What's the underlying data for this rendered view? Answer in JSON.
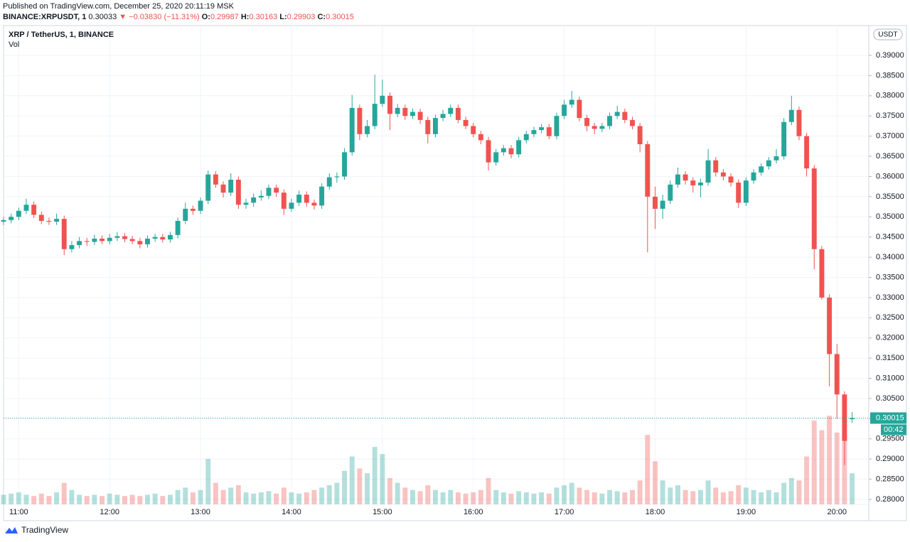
{
  "header": {
    "published": "Published on TradingView.com, December 25, 2020 20:11:19 MSK",
    "symbol": "BINANCE:XRPUSDT, 1",
    "price": "0.30033",
    "arrow": "▼",
    "change": "−0.03830 (−11.31%)",
    "o_label": "O:",
    "h_label": "H:",
    "l_label": "L:",
    "c_label": "C:"
  },
  "chart_data": {
    "type": "candlestick",
    "title": "XRP / TetherUS, 1, BINANCE",
    "volume_label": "Vol",
    "currency": "USDT",
    "countdown": "00:42",
    "up_color": "#26a69a",
    "down_color": "#ef5350",
    "grid": true,
    "ylim": [
      0.27877,
      0.39739
    ],
    "xlim": [
      0,
      114.2
    ],
    "vol_lim": [
      0,
      400
    ],
    "yticks": [
      {
        "value": 0.28,
        "label": "0.28000"
      },
      {
        "value": 0.285,
        "label": "0.28500"
      },
      {
        "value": 0.29,
        "label": "0.29000"
      },
      {
        "value": 0.295,
        "label": "0.29500"
      },
      {
        "value": 0.3,
        "label": "0.30000"
      },
      {
        "value": 0.305,
        "label": "0.30500"
      },
      {
        "value": 0.31,
        "label": "0.31000"
      },
      {
        "value": 0.315,
        "label": "0.31500"
      },
      {
        "value": 0.32,
        "label": "0.32000"
      },
      {
        "value": 0.325,
        "label": "0.32500"
      },
      {
        "value": 0.33,
        "label": "0.33000"
      },
      {
        "value": 0.335,
        "label": "0.33500"
      },
      {
        "value": 0.34,
        "label": "0.34000"
      },
      {
        "value": 0.345,
        "label": "0.34500"
      },
      {
        "value": 0.35,
        "label": "0.35000"
      },
      {
        "value": 0.355,
        "label": "0.35500"
      },
      {
        "value": 0.36,
        "label": "0.36000"
      },
      {
        "value": 0.365,
        "label": "0.36500"
      },
      {
        "value": 0.37,
        "label": "0.37000"
      },
      {
        "value": 0.375,
        "label": "0.37500"
      },
      {
        "value": 0.38,
        "label": "0.38000"
      },
      {
        "value": 0.385,
        "label": "0.38500"
      },
      {
        "value": 0.39,
        "label": "0.39000"
      }
    ],
    "xticks": [
      {
        "value": 2,
        "label": "11:00"
      },
      {
        "value": 14,
        "label": "12:00"
      },
      {
        "value": 26,
        "label": "13:00"
      },
      {
        "value": 38,
        "label": "14:00"
      },
      {
        "value": 50,
        "label": "15:00"
      },
      {
        "value": 62,
        "label": "16:00"
      },
      {
        "value": 74,
        "label": "17:00"
      },
      {
        "value": 86,
        "label": "18:00"
      },
      {
        "value": 98,
        "label": "19:00"
      },
      {
        "value": 110,
        "label": "20:00"
      }
    ],
    "ohlc": [
      [
        0.3488,
        0.35,
        0.348,
        0.3492
      ],
      [
        0.3492,
        0.3508,
        0.3484,
        0.35
      ],
      [
        0.35,
        0.3523,
        0.3492,
        0.3515
      ],
      [
        0.3515,
        0.3545,
        0.3507,
        0.353
      ],
      [
        0.353,
        0.3538,
        0.3497,
        0.3505
      ],
      [
        0.3505,
        0.3513,
        0.3482,
        0.349
      ],
      [
        0.349,
        0.3498,
        0.348,
        0.3488
      ],
      [
        0.3488,
        0.3508,
        0.348,
        0.3495
      ],
      [
        0.3495,
        0.3503,
        0.3405,
        0.342
      ],
      [
        0.342,
        0.344,
        0.3412,
        0.343
      ],
      [
        0.343,
        0.345,
        0.3422,
        0.344
      ],
      [
        0.344,
        0.3448,
        0.3428,
        0.3438
      ],
      [
        0.3438,
        0.3456,
        0.343,
        0.3446
      ],
      [
        0.3446,
        0.3454,
        0.3432,
        0.344
      ],
      [
        0.344,
        0.3458,
        0.3432,
        0.3448
      ],
      [
        0.3448,
        0.3462,
        0.344,
        0.3452
      ],
      [
        0.3452,
        0.346,
        0.3437,
        0.3445
      ],
      [
        0.3445,
        0.3453,
        0.3432,
        0.344
      ],
      [
        0.344,
        0.3448,
        0.3422,
        0.3432
      ],
      [
        0.3432,
        0.3454,
        0.3424,
        0.3446
      ],
      [
        0.3446,
        0.3458,
        0.3438,
        0.345
      ],
      [
        0.345,
        0.3458,
        0.3436,
        0.3444
      ],
      [
        0.3444,
        0.3463,
        0.3436,
        0.3455
      ],
      [
        0.3455,
        0.3498,
        0.3447,
        0.349
      ],
      [
        0.349,
        0.3535,
        0.3482,
        0.352
      ],
      [
        0.352,
        0.3528,
        0.3505,
        0.3515
      ],
      [
        0.3515,
        0.3548,
        0.3507,
        0.354
      ],
      [
        0.354,
        0.3615,
        0.3532,
        0.3605
      ],
      [
        0.3605,
        0.3613,
        0.3572,
        0.358
      ],
      [
        0.358,
        0.3588,
        0.3548,
        0.356
      ],
      [
        0.356,
        0.3608,
        0.3552,
        0.3592
      ],
      [
        0.3592,
        0.36,
        0.352,
        0.353
      ],
      [
        0.353,
        0.3545,
        0.352,
        0.3535
      ],
      [
        0.3535,
        0.3558,
        0.3525,
        0.3548
      ],
      [
        0.3548,
        0.3565,
        0.354,
        0.3552
      ],
      [
        0.3552,
        0.358,
        0.3544,
        0.3572
      ],
      [
        0.3572,
        0.358,
        0.355,
        0.356
      ],
      [
        0.356,
        0.3568,
        0.3505,
        0.352
      ],
      [
        0.352,
        0.3545,
        0.3512,
        0.3535
      ],
      [
        0.3535,
        0.3565,
        0.3527,
        0.3555
      ],
      [
        0.3555,
        0.3563,
        0.3525,
        0.3535
      ],
      [
        0.3535,
        0.3543,
        0.3518,
        0.3528
      ],
      [
        0.3528,
        0.3583,
        0.352,
        0.3575
      ],
      [
        0.3575,
        0.3608,
        0.3567,
        0.3598
      ],
      [
        0.3598,
        0.361,
        0.3585,
        0.36
      ],
      [
        0.36,
        0.367,
        0.3592,
        0.366
      ],
      [
        0.366,
        0.3802,
        0.3652,
        0.377
      ],
      [
        0.377,
        0.3778,
        0.369,
        0.3705
      ],
      [
        0.3705,
        0.374,
        0.3697,
        0.3725
      ],
      [
        0.3725,
        0.3852,
        0.3717,
        0.378
      ],
      [
        0.378,
        0.384,
        0.3772,
        0.38
      ],
      [
        0.38,
        0.3808,
        0.3715,
        0.3755
      ],
      [
        0.3755,
        0.378,
        0.3747,
        0.377
      ],
      [
        0.377,
        0.3778,
        0.374,
        0.375
      ],
      [
        0.375,
        0.3768,
        0.3742,
        0.376
      ],
      [
        0.376,
        0.3768,
        0.373,
        0.374
      ],
      [
        0.374,
        0.3748,
        0.3682,
        0.3705
      ],
      [
        0.3705,
        0.3753,
        0.3697,
        0.3745
      ],
      [
        0.3745,
        0.3765,
        0.3737,
        0.3755
      ],
      [
        0.3755,
        0.3778,
        0.3747,
        0.377
      ],
      [
        0.377,
        0.3778,
        0.3732,
        0.374
      ],
      [
        0.374,
        0.3748,
        0.3717,
        0.3725
      ],
      [
        0.3725,
        0.3733,
        0.3697,
        0.3705
      ],
      [
        0.3705,
        0.3713,
        0.368,
        0.369
      ],
      [
        0.369,
        0.3698,
        0.3615,
        0.3635
      ],
      [
        0.3635,
        0.3668,
        0.3627,
        0.366
      ],
      [
        0.366,
        0.3678,
        0.3652,
        0.367
      ],
      [
        0.367,
        0.3678,
        0.3645,
        0.3655
      ],
      [
        0.3655,
        0.3698,
        0.3647,
        0.369
      ],
      [
        0.369,
        0.3713,
        0.3682,
        0.3705
      ],
      [
        0.3705,
        0.3723,
        0.3697,
        0.3715
      ],
      [
        0.3715,
        0.373,
        0.3707,
        0.3722
      ],
      [
        0.3722,
        0.373,
        0.3692,
        0.37
      ],
      [
        0.37,
        0.3758,
        0.3692,
        0.375
      ],
      [
        0.375,
        0.379,
        0.3742,
        0.3778
      ],
      [
        0.3778,
        0.3812,
        0.377,
        0.379
      ],
      [
        0.379,
        0.3798,
        0.3737,
        0.3745
      ],
      [
        0.3745,
        0.3753,
        0.3712,
        0.3725
      ],
      [
        0.3725,
        0.3733,
        0.3705,
        0.3718
      ],
      [
        0.3718,
        0.3733,
        0.371,
        0.3725
      ],
      [
        0.3725,
        0.3758,
        0.3717,
        0.375
      ],
      [
        0.375,
        0.3775,
        0.3742,
        0.376
      ],
      [
        0.376,
        0.3768,
        0.3732,
        0.374
      ],
      [
        0.374,
        0.3748,
        0.3717,
        0.3725
      ],
      [
        0.3725,
        0.3733,
        0.366,
        0.368
      ],
      [
        0.368,
        0.3688,
        0.3412,
        0.355
      ],
      [
        0.355,
        0.3575,
        0.347,
        0.352
      ],
      [
        0.352,
        0.3555,
        0.3495,
        0.354
      ],
      [
        0.354,
        0.359,
        0.3532,
        0.358
      ],
      [
        0.358,
        0.3622,
        0.3572,
        0.3605
      ],
      [
        0.3605,
        0.3613,
        0.358,
        0.359
      ],
      [
        0.359,
        0.3598,
        0.356,
        0.3578
      ],
      [
        0.3578,
        0.3595,
        0.3548,
        0.3585
      ],
      [
        0.3585,
        0.3668,
        0.3577,
        0.364
      ],
      [
        0.364,
        0.3648,
        0.36,
        0.361
      ],
      [
        0.361,
        0.3618,
        0.359,
        0.36
      ],
      [
        0.36,
        0.3608,
        0.3575,
        0.3585
      ],
      [
        0.3585,
        0.3593,
        0.3522,
        0.3535
      ],
      [
        0.3535,
        0.3598,
        0.3527,
        0.359
      ],
      [
        0.359,
        0.3618,
        0.3582,
        0.361
      ],
      [
        0.361,
        0.3633,
        0.3602,
        0.3625
      ],
      [
        0.3625,
        0.3648,
        0.3617,
        0.364
      ],
      [
        0.364,
        0.3668,
        0.3632,
        0.365
      ],
      [
        0.365,
        0.3745,
        0.3642,
        0.3735
      ],
      [
        0.3735,
        0.38,
        0.3727,
        0.3765
      ],
      [
        0.3765,
        0.3773,
        0.369,
        0.37
      ],
      [
        0.37,
        0.3708,
        0.36,
        0.362
      ],
      [
        0.362,
        0.3628,
        0.337,
        0.342
      ],
      [
        0.342,
        0.3428,
        0.3295,
        0.33
      ],
      [
        0.33,
        0.3308,
        0.308,
        0.316
      ],
      [
        0.316,
        0.3185,
        0.3,
        0.306
      ],
      [
        0.306,
        0.3068,
        0.2885,
        0.2945
      ],
      [
        0.29987,
        0.30163,
        0.29903,
        0.30015
      ]
    ],
    "volume": [
      8,
      9,
      10,
      8,
      7,
      9,
      7,
      10,
      18,
      12,
      8,
      7,
      8,
      7,
      9,
      8,
      7,
      8,
      7,
      8,
      9,
      7,
      8,
      12,
      14,
      10,
      12,
      38,
      18,
      12,
      14,
      16,
      10,
      9,
      10,
      11,
      9,
      14,
      10,
      9,
      10,
      12,
      14,
      16,
      18,
      28,
      40,
      30,
      26,
      48,
      42,
      22,
      18,
      14,
      12,
      11,
      16,
      12,
      10,
      12,
      10,
      9,
      10,
      12,
      22,
      12,
      10,
      9,
      11,
      10,
      9,
      10,
      9,
      14,
      16,
      18,
      14,
      12,
      10,
      9,
      12,
      11,
      10,
      12,
      20,
      58,
      36,
      20,
      14,
      16,
      12,
      11,
      12,
      20,
      14,
      10,
      11,
      16,
      14,
      12,
      10,
      12,
      10,
      18,
      22,
      20,
      40,
      70,
      62,
      74,
      60,
      58,
      26
    ]
  }
}
